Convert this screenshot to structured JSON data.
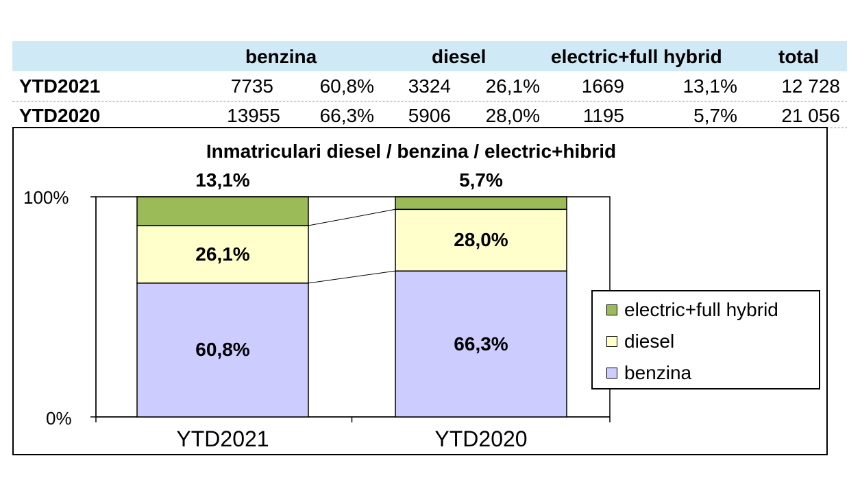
{
  "table": {
    "headers": {
      "benzina": "benzina",
      "diesel": "diesel",
      "electric": "electric+full hybrid",
      "total": "total"
    },
    "rows": [
      {
        "label": "YTD2021",
        "benzina": "7735",
        "benzina_pct": "60,8%",
        "diesel": "3324",
        "diesel_pct": "26,1%",
        "electric": "1669",
        "electric_pct": "13,1%",
        "total": "12 728"
      },
      {
        "label": "YTD2020",
        "benzina": "13955",
        "benzina_pct": "66,3%",
        "diesel": "5906",
        "diesel_pct": "28,0%",
        "electric": "1195",
        "electric_pct": "5,7%",
        "total": "21 056"
      }
    ],
    "header_color": "#cfe9f7"
  },
  "chart_data": {
    "type": "bar",
    "stacked": true,
    "percent_stacked": true,
    "title": "Inmatriculari diesel / benzina / electric+hibrid",
    "categories": [
      "YTD2021",
      "YTD2020"
    ],
    "series": [
      {
        "name": "benzina",
        "values": [
          60.8,
          66.3
        ],
        "labels": [
          "60,8%",
          "66,3%"
        ],
        "color": "#ccccff"
      },
      {
        "name": "diesel",
        "values": [
          26.1,
          28.0
        ],
        "labels": [
          "26,1%",
          "28,0%"
        ],
        "color": "#ffffcc"
      },
      {
        "name": "electric+full hybrid",
        "values": [
          13.1,
          5.7
        ],
        "labels": [
          "13,1%",
          "5,7%"
        ],
        "color": "#9bbb59"
      }
    ],
    "yticks": [
      "100%",
      "0%"
    ],
    "ylim": [
      0,
      100
    ],
    "grid": false,
    "series_lines": true,
    "legend": {
      "position": "right",
      "entries": [
        "electric+full hybrid",
        "diesel",
        "benzina"
      ]
    }
  }
}
